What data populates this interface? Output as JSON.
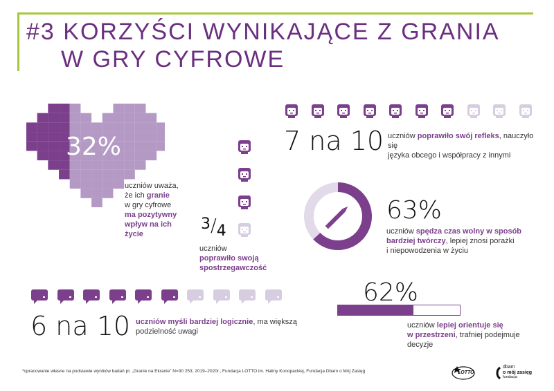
{
  "title": {
    "line1": "#3 KORZYŚCI WYNIKAJĄCE Z GRANIA",
    "line2": "W GRY CYFROWE"
  },
  "colors": {
    "dark": "#7b3f8c",
    "light": "#d7cde0",
    "mid": "#b399c4",
    "accent": "#a5c83a"
  },
  "heart": {
    "percent": "32%",
    "t1": "uczniów uważa,",
    "t2": "że ich ",
    "t2b": "granie",
    "t3": "w gry cyfrowe",
    "t4": "ma pozytywny",
    "t5": "wpływ na ich",
    "t6": "życie"
  },
  "reflex": {
    "big": "7 na 10",
    "t1a": "uczniów ",
    "t1b": "poprawiło swój refleks",
    "t1c": ", nauczyło się",
    "t2": "języka obcego i współpracy z innymi",
    "filled": 7,
    "total": 10
  },
  "quarter": {
    "num": "3",
    "den": "4",
    "t1": "uczniów",
    "t2": "poprawiło swoją",
    "t3": "spostrzegawczość"
  },
  "creative": {
    "percent": "63%",
    "value": 0.63,
    "t1a": "uczniów ",
    "t1b": "spędza czas wolny w sposób",
    "t2b": "bardziej twórczy",
    "t2c": ", lepiej znosi porażki",
    "t3": "i niepowodzenia w życiu"
  },
  "logic": {
    "big": "6 na 10",
    "t1b": "uczniów myśli bardziej logicznie",
    "t1c": ", ma większą",
    "t2": "podzielność uwagi",
    "filled": 6,
    "total": 10
  },
  "space": {
    "percent": "62%",
    "value": 0.62,
    "t1a": "uczniów ",
    "t1b": "lepiej orientuje się",
    "t2b": "w przestrzeni",
    "t2c": ", trafniej podejmuje",
    "t3": "decyzje"
  },
  "footer": "*opracowanie własne na podstawie wyników badań pt. „Granie na Ekranie\" N=30 253; 2019–2020r., Fundacja LOTTO im. Haliny Konopackiej, Fundacja Dbam o Mój Zasięg",
  "logos": {
    "lotto": "LOTTO",
    "dbam1": "dbam",
    "dbam2": "o mój zasięg",
    "dbam3": "fundacja"
  }
}
